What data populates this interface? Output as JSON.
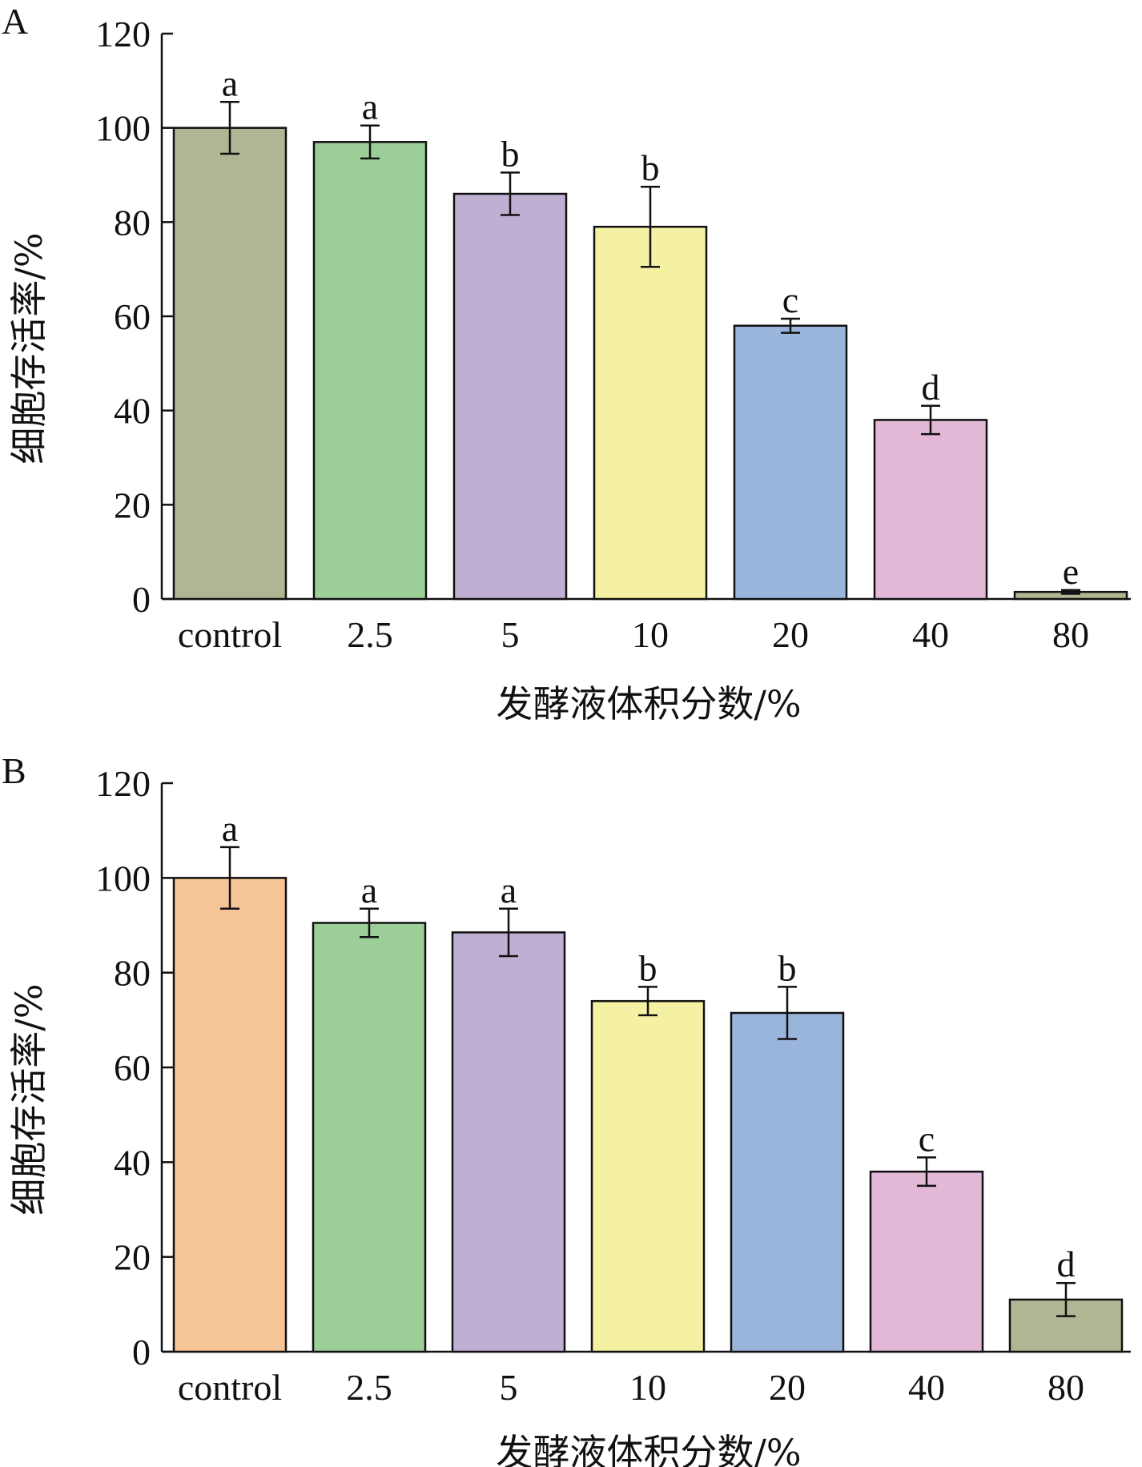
{
  "chart_data": [
    {
      "type": "bar",
      "panel": "A",
      "categories": [
        "control",
        "2.5",
        "5",
        "10",
        "20",
        "40",
        "80"
      ],
      "values": [
        100,
        97,
        86,
        79,
        58,
        38,
        1.5
      ],
      "errors": [
        5.5,
        3.5,
        4.5,
        8.5,
        1.5,
        3,
        0.4
      ],
      "significance": [
        "a",
        "a",
        "b",
        "b",
        "c",
        "d",
        "e"
      ],
      "colors": [
        "#b1b593",
        "#9ccf98",
        "#bfb0d3",
        "#f5f1a3",
        "#9ab5dc",
        "#e3b8d6",
        "#b1b593"
      ],
      "xlabel": "发酵液体积分数/%",
      "ylabel": "细胞存活率/%",
      "ylim": [
        0,
        120
      ],
      "yticks": [
        "0",
        "20",
        "40",
        "60",
        "80",
        "100",
        "120"
      ]
    },
    {
      "type": "bar",
      "panel": "B",
      "categories": [
        "control",
        "2.5",
        "5",
        "10",
        "20",
        "40",
        "80"
      ],
      "values": [
        100,
        90.5,
        88.5,
        74,
        71.5,
        38,
        11
      ],
      "errors": [
        6.5,
        3,
        5,
        3,
        5.5,
        3,
        3.5
      ],
      "significance": [
        "a",
        "a",
        "a",
        "b",
        "b",
        "c",
        "d"
      ],
      "colors": [
        "#f5c497",
        "#9ccf98",
        "#bfb0d3",
        "#f5f1a3",
        "#9ab5dc",
        "#e3b8d6",
        "#b1b593"
      ],
      "xlabel": "发酵液体积分数/%",
      "ylabel": "细胞存活率/%",
      "ylim": [
        0,
        120
      ],
      "yticks": [
        "0",
        "20",
        "40",
        "60",
        "80",
        "100",
        "120"
      ]
    }
  ]
}
